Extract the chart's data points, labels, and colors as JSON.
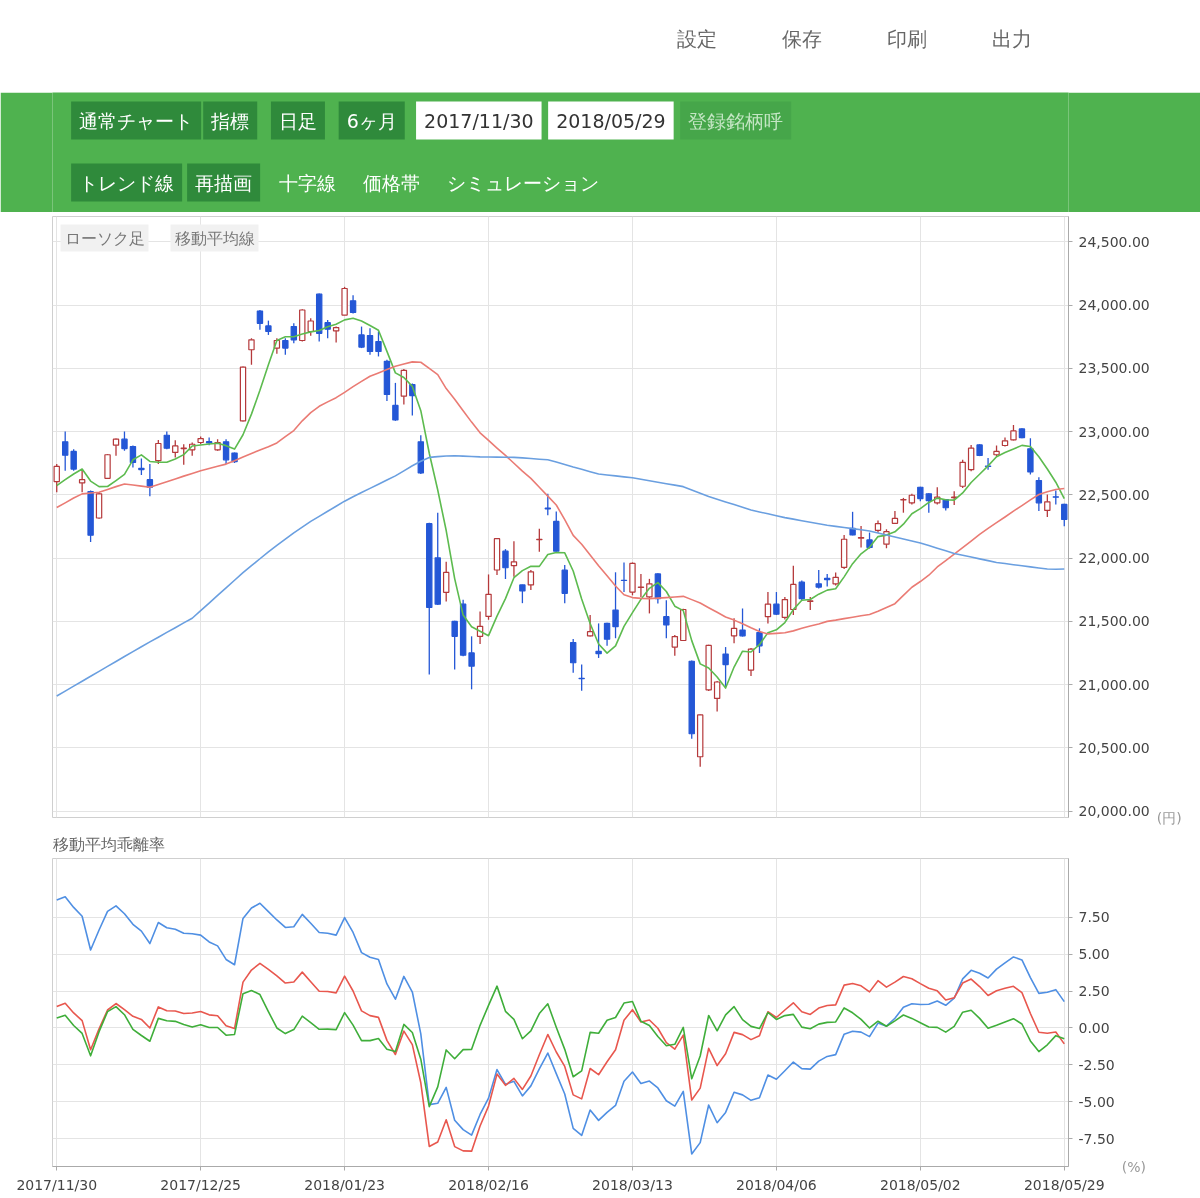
{
  "chart_data": [
    {
      "type": "other",
      "annotations": [
        "設定",
        "保存",
        "印刷",
        "出力",
        "通常チャート",
        "指標",
        "日足",
        "6ヶ月",
        "2017/11/30",
        "2018/05/29",
        "登録銘柄呼",
        "トレンド線",
        "再描画",
        "十字線",
        "価格帯",
        "シミュレーション"
      ]
    },
    {
      "type": "candlestick",
      "annotations": [
        "ローソク足",
        "移動平均線"
      ],
      "ylabel": "(円)",
      "tick_labels": "y",
      "grid": true,
      "categories": [
        "2017/11/30",
        null,
        null,
        null,
        null,
        null,
        null,
        null,
        null,
        null,
        null,
        null,
        null,
        null,
        null,
        null,
        null,
        "2017/12/25",
        null,
        null,
        null,
        null,
        null,
        null,
        null,
        null,
        null,
        null,
        null,
        null,
        null,
        null,
        null,
        null,
        "2018/01/23",
        null,
        null,
        null,
        null,
        null,
        null,
        null,
        null,
        null,
        null,
        null,
        null,
        null,
        null,
        null,
        null,
        "2018/02/16",
        null,
        null,
        null,
        null,
        null,
        null,
        null,
        null,
        null,
        null,
        null,
        null,
        null,
        null,
        null,
        null,
        "2018/03/13",
        null,
        null,
        null,
        null,
        null,
        null,
        null,
        null,
        null,
        null,
        null,
        null,
        null,
        null,
        null,
        null,
        "2018/04/06",
        null,
        null,
        null,
        null,
        null,
        null,
        null,
        null,
        null,
        null,
        null,
        null,
        null,
        null,
        null,
        null,
        "2018/05/02",
        null,
        null,
        null,
        null,
        null,
        null,
        null,
        null,
        null,
        null,
        null,
        null,
        null,
        null,
        null,
        null,
        "2018/05/29"
      ],
      "ylim": [
        19950,
        24700
      ],
      "yticks": [
        {
          "value": 20000,
          "label": "20,000.00"
        },
        {
          "value": 20500,
          "label": "20,500.00"
        },
        {
          "value": 21000,
          "label": "21,000.00"
        },
        {
          "value": 21500,
          "label": "21,500.00"
        },
        {
          "value": 22000,
          "label": "22,000.00"
        },
        {
          "value": 22500,
          "label": "22,500.00"
        },
        {
          "value": 23000,
          "label": "23,000.00"
        },
        {
          "value": 23500,
          "label": "23,500.00"
        },
        {
          "value": 24000,
          "label": "24,000.00"
        },
        {
          "value": 24500,
          "label": "24,500.00"
        }
      ],
      "ohlc": [
        [
          22605,
          22743,
          22521,
          22725
        ],
        [
          22919,
          23000,
          22691,
          22814
        ],
        [
          22843,
          22861,
          22691,
          22704
        ],
        [
          22594,
          22704,
          22521,
          22620
        ],
        [
          22526,
          22534,
          22128,
          22181
        ],
        [
          22317,
          22521,
          22312,
          22508
        ],
        [
          22631,
          22822,
          22626,
          22817
        ],
        [
          22893,
          22945,
          22809,
          22940
        ],
        [
          22940,
          23000,
          22848,
          22866
        ],
        [
          22882,
          22890,
          22717,
          22756
        ],
        [
          22710,
          22788,
          22657,
          22700
        ],
        [
          22620,
          22743,
          22489,
          22560
        ],
        [
          22770,
          22934,
          22743,
          22906
        ],
        [
          22971,
          23000,
          22861,
          22869
        ],
        [
          22835,
          22932,
          22796,
          22887
        ],
        [
          22866,
          22900,
          22738,
          22870
        ],
        [
          22856,
          22914,
          22809,
          22900
        ],
        [
          22914,
          22961,
          22900,
          22945
        ],
        [
          22920,
          22953,
          22893,
          22910
        ],
        [
          22856,
          22940,
          22848,
          22914
        ],
        [
          22919,
          22940,
          22743,
          22777
        ],
        [
          22830,
          22835,
          22752,
          22762
        ],
        [
          23084,
          23515,
          23079,
          23510
        ],
        [
          23647,
          23738,
          23529,
          23725
        ],
        [
          23953,
          23961,
          23804,
          23856
        ],
        [
          23835,
          23877,
          23764,
          23791
        ],
        [
          23660,
          23738,
          23615,
          23720
        ],
        [
          23720,
          23738,
          23607,
          23660
        ],
        [
          23830,
          23856,
          23699,
          23725
        ],
        [
          23720,
          23966,
          23712,
          23961
        ],
        [
          23791,
          23895,
          23757,
          23874
        ],
        [
          24086,
          24092,
          23712,
          23777
        ],
        [
          23861,
          23882,
          23738,
          23809
        ],
        [
          23796,
          23830,
          23704,
          23822
        ],
        [
          23921,
          24144,
          23921,
          24131
        ],
        [
          24034,
          24078,
          23934,
          23942
        ],
        [
          23764,
          23830,
          23660,
          23668
        ],
        [
          23759,
          23817,
          23607,
          23633
        ],
        [
          23712,
          23791,
          23594,
          23633
        ],
        [
          23555,
          23568,
          23241,
          23293
        ],
        [
          23207,
          23385,
          23085,
          23092
        ],
        [
          23280,
          23495,
          23215,
          23484
        ],
        [
          23372,
          23380,
          23128,
          23285
        ],
        [
          22919,
          22971,
          22665,
          22673
        ],
        [
          22272,
          22280,
          21081,
          21610
        ],
        [
          22002,
          22358,
          21630,
          21636
        ],
        [
          21730,
          21971,
          21657,
          21887
        ],
        [
          21500,
          21505,
          21120,
          21382
        ],
        [
          21636,
          21670,
          21225,
          21233
        ],
        [
          21251,
          21382,
          20963,
          21146
        ],
        [
          21382,
          21579,
          21322,
          21461
        ],
        [
          21539,
          21871,
          21513,
          21714
        ],
        [
          21906,
          22160,
          21866,
          22154
        ],
        [
          22055,
          22071,
          21835,
          21924
        ],
        [
          21940,
          22134,
          21853,
          21971
        ],
        [
          21788,
          21790,
          21644,
          21741
        ],
        [
          21788,
          21906,
          21749,
          21892
        ],
        [
          22145,
          22233,
          22050,
          22149
        ],
        [
          22395,
          22508,
          22338,
          22390
        ],
        [
          22290,
          22369,
          22050,
          22055
        ],
        [
          21905,
          21945,
          21644,
          21722
        ],
        [
          21333,
          21360,
          21094,
          21173
        ],
        [
          21050,
          21159,
          20951,
          21047
        ],
        [
          21385,
          21550,
          21380,
          21419
        ],
        [
          21263,
          21484,
          21211,
          21245
        ],
        [
          21484,
          21490,
          21307,
          21359
        ],
        [
          21589,
          21888,
          21367,
          21458
        ],
        [
          21825,
          21966,
          21732,
          21823
        ],
        [
          21732,
          21966,
          21706,
          21958
        ],
        [
          21768,
          21875,
          21693,
          21771
        ],
        [
          21693,
          21836,
          21563,
          21797
        ],
        [
          21875,
          21880,
          21641,
          21680
        ],
        [
          21537,
          21667,
          21367,
          21472
        ],
        [
          21297,
          21393,
          21229,
          21380
        ],
        [
          21349,
          21599,
          21345,
          21594
        ],
        [
          21185,
          21190,
          20573,
          20612
        ],
        [
          20430,
          20765,
          20352,
          20761
        ],
        [
          20958,
          21315,
          20950,
          21310
        ],
        [
          20891,
          21029,
          20787,
          21021
        ],
        [
          21242,
          21297,
          20990,
          21159
        ],
        [
          21386,
          21524,
          21328,
          21445
        ],
        [
          21432,
          21602,
          21380,
          21386
        ],
        [
          21115,
          21289,
          21068,
          21281
        ],
        [
          21412,
          21445,
          21250,
          21307
        ],
        [
          21537,
          21732,
          21484,
          21636
        ],
        [
          21636,
          21732,
          21550,
          21557
        ],
        [
          21531,
          21693,
          21515,
          21672
        ],
        [
          21594,
          21940,
          21550,
          21792
        ],
        [
          21810,
          21823,
          21667,
          21680
        ],
        [
          21658,
          21693,
          21589,
          21662
        ],
        [
          21797,
          21906,
          21760,
          21771
        ],
        [
          21840,
          21875,
          21776,
          21830
        ],
        [
          21796,
          21887,
          21783,
          21848
        ],
        [
          21927,
          22183,
          21914,
          22149
        ],
        [
          22236,
          22366,
          22180,
          22183
        ],
        [
          22158,
          22254,
          22084,
          22162
        ],
        [
          22144,
          22202,
          22075,
          22084
        ],
        [
          22220,
          22298,
          22201,
          22272
        ],
        [
          22110,
          22228,
          22078,
          22209
        ],
        [
          22275,
          22372,
          22270,
          22314
        ],
        [
          22460,
          22476,
          22359,
          22463
        ],
        [
          22437,
          22508,
          22424,
          22497
        ],
        [
          22560,
          22565,
          22450,
          22471
        ],
        [
          22508,
          22512,
          22359,
          22455
        ],
        [
          22437,
          22560,
          22424,
          22482
        ],
        [
          22463,
          22468,
          22377,
          22398
        ],
        [
          22478,
          22529,
          22419,
          22482
        ],
        [
          22568,
          22777,
          22555,
          22757
        ],
        [
          22699,
          22895,
          22686,
          22869
        ],
        [
          22895,
          22900,
          22806,
          22811
        ],
        [
          22728,
          22791,
          22699,
          22725
        ],
        [
          22817,
          22890,
          22804,
          22843
        ],
        [
          22890,
          22953,
          22882,
          22927
        ],
        [
          22935,
          23052,
          22930,
          23005
        ],
        [
          23021,
          23026,
          22948,
          22953
        ],
        [
          22864,
          22948,
          22660,
          22681
        ],
        [
          22613,
          22639,
          22372,
          22437
        ],
        [
          22377,
          22503,
          22325,
          22445
        ],
        [
          22485,
          22534,
          22424,
          22482
        ],
        [
          22424,
          22430,
          22251,
          22306
        ]
      ],
      "colors": [
        "#b5393b",
        "#2457d6",
        "#2457d6",
        "#b5393b",
        "#2457d6",
        "#b5393b",
        "#b5393b",
        "#b5393b",
        "#2457d6",
        "#2457d6",
        "#2457d6",
        "#2457d6",
        "#b5393b",
        "#2457d6",
        "#b5393b",
        "#b5393b",
        "#b5393b",
        "#b5393b",
        "#2457d6",
        "#b5393b",
        "#2457d6",
        "#2457d6",
        "#b5393b",
        "#b5393b",
        "#2457d6",
        "#2457d6",
        "#b5393b",
        "#2457d6",
        "#2457d6",
        "#b5393b",
        "#b5393b",
        "#2457d6",
        "#2457d6",
        "#b5393b",
        "#b5393b",
        "#2457d6",
        "#2457d6",
        "#2457d6",
        "#2457d6",
        "#2457d6",
        "#2457d6",
        "#b5393b",
        "#2457d6",
        "#2457d6",
        "#2457d6",
        "#2457d6",
        "#b5393b",
        "#2457d6",
        "#2457d6",
        "#2457d6",
        "#b5393b",
        "#b5393b",
        "#b5393b",
        "#2457d6",
        "#b5393b",
        "#2457d6",
        "#b5393b",
        "#b5393b",
        "#2457d6",
        "#2457d6",
        "#2457d6",
        "#2457d6",
        "#2457d6",
        "#b5393b",
        "#2457d6",
        "#2457d6",
        "#2457d6",
        "#2457d6",
        "#b5393b",
        "#b5393b",
        "#b5393b",
        "#2457d6",
        "#2457d6",
        "#b5393b",
        "#b5393b",
        "#2457d6",
        "#b5393b",
        "#b5393b",
        "#b5393b",
        "#2457d6",
        "#b5393b",
        "#2457d6",
        "#b5393b",
        "#2457d6",
        "#b5393b",
        "#2457d6",
        "#b5393b",
        "#b5393b",
        "#2457d6",
        "#b5393b",
        "#2457d6",
        "#2457d6",
        "#b5393b",
        "#b5393b",
        "#2457d6",
        "#b5393b",
        "#2457d6",
        "#b5393b",
        "#b5393b",
        "#b5393b",
        "#b5393b",
        "#b5393b",
        "#2457d6",
        "#2457d6",
        "#b5393b",
        "#2457d6",
        "#b5393b",
        "#b5393b",
        "#b5393b",
        "#2457d6",
        "#2457d6",
        "#b5393b",
        "#b5393b",
        "#b5393b",
        "#2457d6",
        "#2457d6",
        "#2457d6",
        "#b5393b",
        "#2457d6",
        "#2457d6"
      ],
      "series": [
        {
          "type": "line",
          "color": "#5dbb4f",
          "values": [
            22573,
            22620,
            22665,
            22704,
            22609,
            22565,
            22566,
            22613,
            22662,
            22777,
            22816,
            22764,
            22758,
            22758,
            22784,
            22818,
            22886,
            22894,
            22902,
            22908,
            22889,
            22862,
            22975,
            23138,
            23326,
            23529,
            23720,
            23750,
            23750,
            23771,
            23788,
            23799,
            23829,
            23849,
            23883,
            23896,
            23874,
            23839,
            23801,
            23634,
            23464,
            23427,
            23357,
            23165,
            22829,
            22538,
            22218,
            21838,
            21550,
            21457,
            21422,
            21387,
            21542,
            21680,
            21845,
            21901,
            21936,
            21935,
            22029,
            22045,
            22042,
            21898,
            21677,
            21483,
            21321,
            21249,
            21306,
            21461,
            21569,
            21674,
            21761,
            21806,
            21736,
            21620,
            21585,
            21348,
            21164,
            21131,
            21060,
            20973,
            21139,
            21264,
            21258,
            21316,
            21411,
            21433,
            21491,
            21593,
            21667,
            21673,
            21715,
            21747,
            21758,
            21852,
            21956,
            22034,
            22085,
            22170,
            22182,
            22208,
            22268,
            22351,
            22391,
            22440,
            22474,
            22461,
            22458,
            22515,
            22598,
            22663,
            22729,
            22801,
            22835,
            22862,
            22891,
            22882,
            22801,
            22704,
            22600,
            22470
          ]
        },
        {
          "type": "line",
          "color": "#ea7b74",
          "values": [
            22400,
            22437,
            22475,
            22508,
            22515,
            22521,
            22543,
            22565,
            22586,
            22578,
            22569,
            22560,
            22582,
            22604,
            22626,
            22648,
            22669,
            22691,
            22708,
            22726,
            22743,
            22770,
            22800,
            22827,
            22854,
            22880,
            22910,
            22960,
            23008,
            23085,
            23150,
            23200,
            23235,
            23268,
            23310,
            23355,
            23397,
            23437,
            23463,
            23490,
            23516,
            23534,
            23551,
            23548,
            23500,
            23450,
            23340,
            23255,
            23165,
            23075,
            22990,
            22930,
            22870,
            22812,
            22750,
            22687,
            22630,
            22560,
            22490,
            22420,
            22305,
            22180,
            22110,
            22025,
            21940,
            21860,
            21780,
            21710,
            21688,
            21682,
            21680,
            21684,
            21688,
            21693,
            21698,
            21672,
            21645,
            21608,
            21572,
            21535,
            21510,
            21482,
            21450,
            21420,
            21401,
            21405,
            21410,
            21425,
            21445,
            21464,
            21480,
            21500,
            21510,
            21522,
            21533,
            21545,
            21555,
            21580,
            21610,
            21640,
            21705,
            21770,
            21815,
            21865,
            21930,
            21980,
            22031,
            22083,
            22135,
            22188,
            22235,
            22280,
            22325,
            22372,
            22415,
            22460,
            22503,
            22525,
            22542,
            22550
          ]
        },
        {
          "type": "line",
          "color": "#6a9fe0",
          "values": [
            20910,
            20949,
            20988,
            21027,
            21066,
            21105,
            21144,
            21183,
            21222,
            21261,
            21300,
            21338,
            21375,
            21413,
            21450,
            21488,
            21525,
            21585,
            21645,
            21705,
            21765,
            21825,
            21885,
            21940,
            21995,
            22050,
            22100,
            22150,
            22200,
            22245,
            22290,
            22330,
            22370,
            22410,
            22450,
            22485,
            22518,
            22551,
            22584,
            22617,
            22650,
            22690,
            22730,
            22765,
            22796,
            22802,
            22807,
            22809,
            22806,
            22803,
            22800,
            22799,
            22798,
            22797,
            22796,
            22792,
            22787,
            22782,
            22777,
            22760,
            22740,
            22720,
            22702,
            22683,
            22665,
            22657,
            22650,
            22642,
            22635,
            22623,
            22612,
            22600,
            22588,
            22577,
            22565,
            22539,
            22513,
            22487,
            22466,
            22444,
            22423,
            22402,
            22380,
            22365,
            22350,
            22335,
            22320,
            22308,
            22296,
            22284,
            22272,
            22260,
            22251,
            22242,
            22233,
            22224,
            22215,
            22199,
            22183,
            22167,
            22151,
            22135,
            22120,
            22099,
            22078,
            22058,
            22037,
            22023,
            22009,
            21994,
            21980,
            21966,
            21957,
            21948,
            21940,
            21931,
            21922,
            21914,
            21912,
            21914
          ]
        }
      ]
    },
    {
      "type": "line",
      "title": "移動平均乖離率",
      "ylabel": "(%)",
      "grid": true,
      "categories": [
        "2017/11/30",
        null,
        null,
        null,
        null,
        null,
        null,
        null,
        null,
        null,
        null,
        null,
        null,
        null,
        null,
        null,
        null,
        "2017/12/25",
        null,
        null,
        null,
        null,
        null,
        null,
        null,
        null,
        null,
        null,
        null,
        null,
        null,
        null,
        null,
        null,
        "2018/01/23",
        null,
        null,
        null,
        null,
        null,
        null,
        null,
        null,
        null,
        null,
        null,
        null,
        null,
        null,
        null,
        null,
        "2018/02/16",
        null,
        null,
        null,
        null,
        null,
        null,
        null,
        null,
        null,
        null,
        null,
        null,
        null,
        null,
        null,
        null,
        "2018/03/13",
        null,
        null,
        null,
        null,
        null,
        null,
        null,
        null,
        null,
        null,
        null,
        null,
        null,
        null,
        null,
        null,
        "2018/04/06",
        null,
        null,
        null,
        null,
        null,
        null,
        null,
        null,
        null,
        null,
        null,
        null,
        null,
        null,
        null,
        null,
        "2018/05/02",
        null,
        null,
        null,
        null,
        null,
        null,
        null,
        null,
        null,
        null,
        null,
        null,
        null,
        null,
        null,
        null,
        "2018/05/29"
      ],
      "ylim": [
        -9.4,
        11.5
      ],
      "yticks": [
        {
          "value": -7.5,
          "label": "-7.50"
        },
        {
          "value": -5,
          "label": "-5.00"
        },
        {
          "value": -2.5,
          "label": "-2.50"
        },
        {
          "value": 0,
          "label": "0.00"
        },
        {
          "value": 2.5,
          "label": "2.50"
        },
        {
          "value": 5,
          "label": "5.00"
        },
        {
          "value": 7.5,
          "label": "7.50"
        }
      ],
      "series": [
        {
          "color": "#4f8fe3",
          "values": [
            8.68,
            8.9,
            8.18,
            7.58,
            5.29,
            6.65,
            7.91,
            8.29,
            7.75,
            7.03,
            6.57,
            5.73,
            7.16,
            6.8,
            6.7,
            6.43,
            6.39,
            6.3,
            5.84,
            5.57,
            4.65,
            4.29,
            7.43,
            8.14,
            8.46,
            7.9,
            7.33,
            6.82,
            6.87,
            7.71,
            7.11,
            6.48,
            6.43,
            6.3,
            7.49,
            6.48,
            5.11,
            4.8,
            4.64,
            2.99,
            1.95,
            3.5,
            2.44,
            -0.4,
            -5.2,
            -5.11,
            -4.03,
            -6.26,
            -6.9,
            -7.27,
            -5.87,
            -4.76,
            -2.82,
            -3.83,
            -3.62,
            -4.61,
            -3.93,
            -2.78,
            -1.7,
            -3.1,
            -4.48,
            -6.81,
            -7.29,
            -5.57,
            -6.27,
            -5.73,
            -5.26,
            -3.62,
            -2.99,
            -3.77,
            -3.6,
            -4.07,
            -4.94,
            -5.3,
            -4.3,
            -8.55,
            -7.78,
            -5.23,
            -6.43,
            -5.73,
            -4.36,
            -4.54,
            -4.91,
            -4.73,
            -3.19,
            -3.48,
            -2.9,
            -2.31,
            -2.76,
            -2.79,
            -2.25,
            -1.93,
            -1.81,
            -0.42,
            -0.22,
            -0.28,
            -0.59,
            0.33,
            0.12,
            0.66,
            1.41,
            1.64,
            1.59,
            1.61,
            1.83,
            1.54,
            2.02,
            3.33,
            3.91,
            3.71,
            3.39,
            3.99,
            4.42,
            4.82,
            4.62,
            3.42,
            2.35,
            2.42,
            2.6,
            1.79
          ]
        },
        {
          "color": "#e8574e",
          "values": [
            1.45,
            1.68,
            1.02,
            0.5,
            -1.48,
            -0.06,
            1.22,
            1.66,
            1.24,
            0.79,
            0.58,
            0.0,
            1.43,
            1.17,
            1.15,
            0.98,
            1.02,
            1.12,
            0.89,
            0.83,
            0.15,
            -0.04,
            3.11,
            3.93,
            4.38,
            3.98,
            3.54,
            3.05,
            3.12,
            3.79,
            3.13,
            2.49,
            2.47,
            2.38,
            3.52,
            2.51,
            1.16,
            0.84,
            0.72,
            -0.84,
            -1.8,
            -0.21,
            -1.13,
            -3.72,
            -8.04,
            -7.74,
            -6.23,
            -8.05,
            -8.34,
            -8.36,
            -6.65,
            -5.3,
            -3.13,
            -3.89,
            -3.42,
            -4.17,
            -3.26,
            -1.82,
            -0.44,
            -1.63,
            -2.61,
            -4.54,
            -4.81,
            -2.75,
            -3.17,
            -2.29,
            -1.48,
            0.52,
            1.24,
            0.41,
            0.54,
            -0.02,
            -1.0,
            -1.44,
            -0.48,
            -4.89,
            -4.08,
            -1.38,
            -2.55,
            -1.75,
            -0.3,
            -0.45,
            -0.79,
            -0.53,
            1.1,
            0.71,
            1.22,
            1.71,
            1.1,
            0.92,
            1.35,
            1.53,
            1.57,
            2.91,
            3.02,
            2.86,
            2.45,
            3.21,
            2.77,
            3.11,
            3.49,
            3.34,
            3.01,
            2.7,
            2.52,
            1.9,
            2.05,
            3.05,
            3.32,
            2.81,
            2.2,
            2.53,
            2.7,
            2.83,
            2.4,
            0.98,
            -0.29,
            -0.36,
            -0.27,
            -1.08
          ]
        },
        {
          "color": "#3fae3a",
          "values": [
            0.67,
            0.86,
            0.17,
            -0.37,
            -1.89,
            -0.25,
            1.11,
            1.45,
            0.9,
            -0.09,
            -0.51,
            -0.9,
            0.65,
            0.49,
            0.45,
            0.23,
            0.06,
            0.22,
            0.03,
            0.03,
            -0.49,
            -0.44,
            2.33,
            2.54,
            2.27,
            1.11,
            0.0,
            -0.38,
            -0.11,
            0.8,
            0.36,
            -0.09,
            -0.08,
            -0.11,
            1.04,
            0.19,
            -0.86,
            -0.86,
            -0.71,
            -1.44,
            -1.59,
            0.24,
            -0.31,
            -2.12,
            -5.34,
            -4.0,
            -1.49,
            -2.09,
            -1.47,
            -1.45,
            0.18,
            1.53,
            2.84,
            1.13,
            0.58,
            -0.73,
            -0.2,
            0.98,
            1.64,
            0.05,
            -1.45,
            -3.31,
            -2.91,
            -0.3,
            -0.36,
            0.52,
            0.71,
            1.69,
            1.8,
            0.45,
            0.17,
            -0.58,
            -1.21,
            -1.11,
            0.04,
            -3.45,
            -1.9,
            0.85,
            -0.19,
            0.89,
            1.45,
            0.57,
            0.11,
            -0.04,
            1.05,
            0.58,
            0.84,
            0.92,
            0.06,
            -0.05,
            0.26,
            0.38,
            0.41,
            1.36,
            1.03,
            0.58,
            0.0,
            0.46,
            0.12,
            0.48,
            0.88,
            0.65,
            0.36,
            0.07,
            0.04,
            -0.28,
            0.11,
            1.07,
            1.2,
            0.65,
            -0.02,
            0.18,
            0.4,
            0.63,
            0.27,
            -0.88,
            -1.6,
            -1.14,
            -0.52,
            -0.73
          ]
        }
      ]
    }
  ]
}
